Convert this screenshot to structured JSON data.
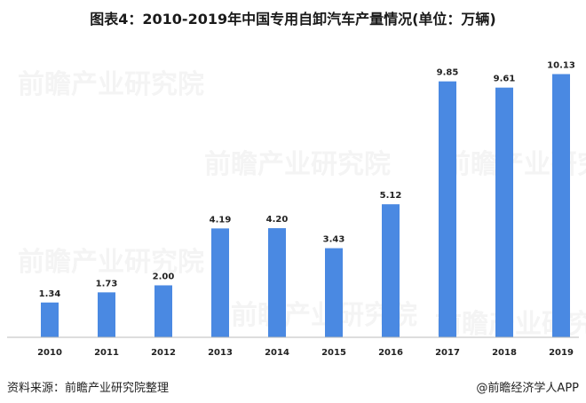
{
  "header": {
    "title": "图表4：2010-2019年中国专用自卸汽车产量情况(单位：万辆)"
  },
  "footer": {
    "source": "资料来源：前瞻产业研究院整理",
    "brand": "@前瞻经济学人APP"
  },
  "watermark": {
    "text": "前瞻产业研究院"
  },
  "colors": {
    "bar": "#4A89E2",
    "axis": "#BBBBBB"
  },
  "chart_data": {
    "type": "bar",
    "title": "图表4：2010-2019年中国专用自卸汽车产量情况(单位：万辆)",
    "xlabel": "",
    "ylabel": "",
    "categories": [
      "2010",
      "2011",
      "2012",
      "2013",
      "2014",
      "2015",
      "2016",
      "2017",
      "2018",
      "2019"
    ],
    "values": [
      1.34,
      1.73,
      2.0,
      4.19,
      4.2,
      3.43,
      5.12,
      9.85,
      9.61,
      10.13
    ],
    "value_labels": [
      "1.34",
      "1.73",
      "2.00",
      "4.19",
      "4.20",
      "3.43",
      "5.12",
      "9.85",
      "9.61",
      "10.13"
    ],
    "ylim": [
      0,
      11
    ],
    "grid": false,
    "legend": "none"
  }
}
